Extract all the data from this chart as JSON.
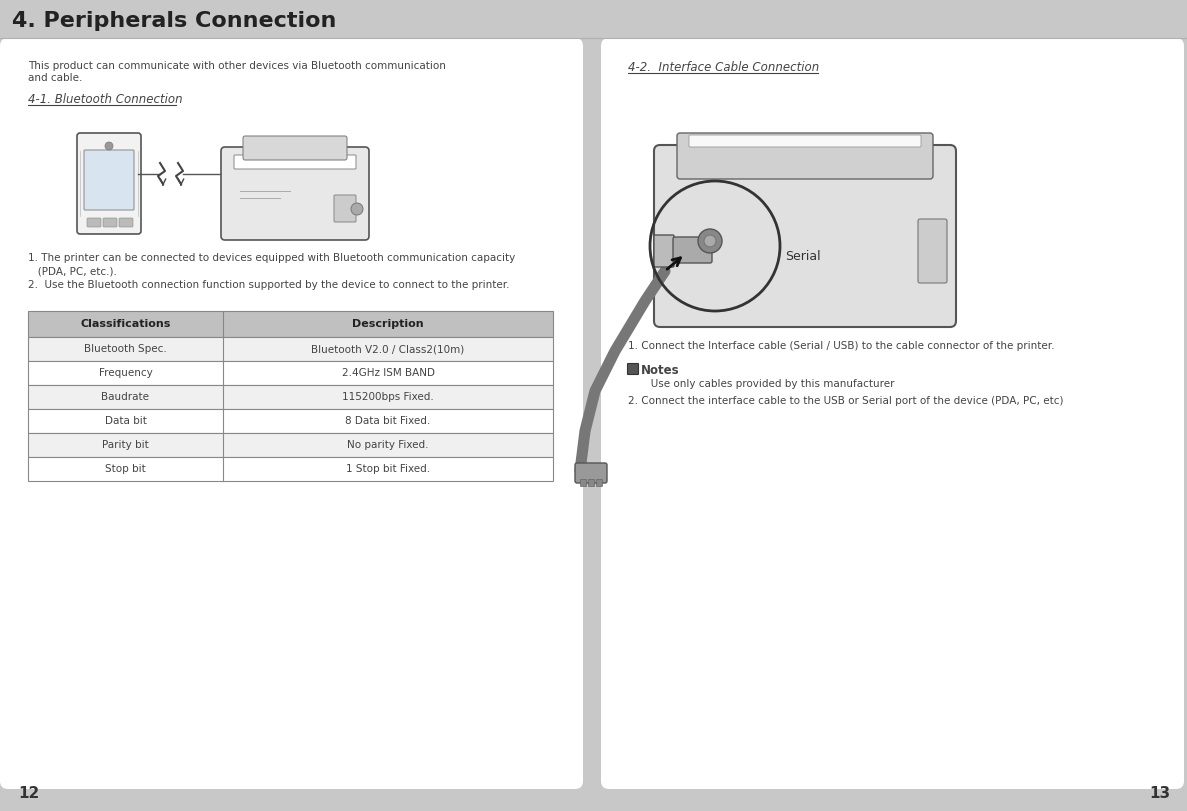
{
  "title": "4. Peripherals Connection",
  "page_bg": "#c8c8c8",
  "left_panel_bg": "#ffffff",
  "right_panel_bg": "#ffffff",
  "intro_text_line1": "This product can communicate with other devices via Bluetooth communication",
  "intro_text_line2": "and cable.",
  "section1_title": "4-1. Bluetooth Connection",
  "section2_title": "4-2.  Interface Cable Connection",
  "bt_text1a": "1. The printer can be connected to devices equipped with Bluetooth communication capacity",
  "bt_text1b": "   (PDA, PC, etc.).",
  "bt_text2": "2.  Use the Bluetooth connection function supported by the device to connect to the printer.",
  "cable_text1": "1. Connect the Interface cable (Serial / USB) to the cable connector of the printer.",
  "notes_label": "☑Notes",
  "notes_text": "   Use only cables provided by this manufacturer",
  "cable_text2": "2. Connect the interface cable to the USB or Serial port of the device (PDA, PC, etc)",
  "serial_label": "Serial",
  "table_header": [
    "Classifications",
    "Description"
  ],
  "table_rows": [
    [
      "Bluetooth Spec.",
      "Bluetooth V2.0 / Class2(10m)"
    ],
    [
      "Frequency",
      "2.4GHz ISM BAND"
    ],
    [
      "Baudrate",
      "115200bps Fixed."
    ],
    [
      "Data bit",
      "8 Data bit Fixed."
    ],
    [
      "Parity bit",
      "No parity Fixed."
    ],
    [
      "Stop bit",
      "1 Stop bit Fixed."
    ]
  ],
  "table_header_bg": "#c0c0c0",
  "table_row_bg": "#f0f0f0",
  "table_alt_bg": "#ffffff",
  "text_color": "#444444",
  "page_num_left": "12",
  "page_num_right": "13",
  "title_fontsize": 16,
  "body_fontsize": 7.5,
  "section_fontsize": 8.5,
  "table_fontsize": 7.5
}
